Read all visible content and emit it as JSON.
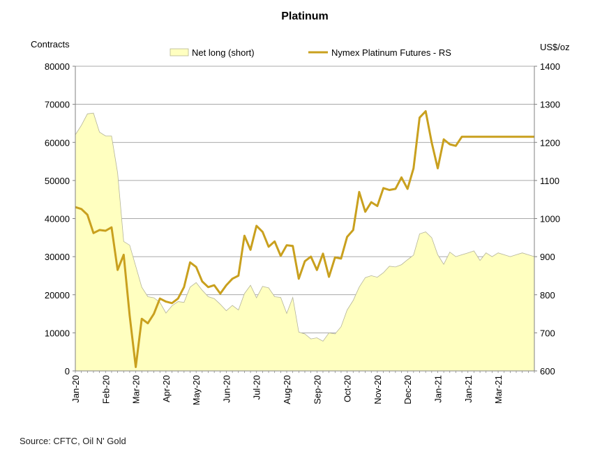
{
  "chart_data": {
    "type": "area",
    "title": "Platinum",
    "source": "Source: CFTC, Oil N' Gold",
    "y_left_label": "Contracts",
    "y_right_label": "US$/oz",
    "y_left_range": [
      0,
      80000
    ],
    "y_left_ticks": [
      0,
      10000,
      20000,
      30000,
      40000,
      50000,
      60000,
      70000,
      80000
    ],
    "y_right_range": [
      600,
      1400
    ],
    "y_right_ticks": [
      600,
      700,
      800,
      900,
      1000,
      1100,
      1200,
      1300,
      1400
    ],
    "grid": "horizontal",
    "legend_position": "top",
    "x_tick_labels": [
      "Jan-20",
      "Feb-20",
      "Mar-20",
      "Apr-20",
      "May-20",
      "Jun-20",
      "Jul-20",
      "Aug-20",
      "Sep-20",
      "Oct-20",
      "Nov-20",
      "Dec-20",
      "Jan-21",
      "Jan-21",
      "Mar-21"
    ],
    "x_tick_week_index": [
      0,
      5,
      10,
      15,
      20,
      25,
      30,
      35,
      40,
      45,
      50,
      55,
      60,
      65,
      70
    ],
    "weeks": 77,
    "series": [
      {
        "name": "Net long (short)",
        "kind": "area",
        "axis": "left",
        "color": "#ffffc0",
        "values": [
          62000,
          64500,
          67500,
          67700,
          62700,
          61700,
          61700,
          52000,
          34000,
          33000,
          27500,
          22000,
          19500,
          19200,
          18000,
          15200,
          17100,
          18200,
          18000,
          22000,
          23200,
          21200,
          19500,
          19000,
          17500,
          15800,
          17200,
          16000,
          20300,
          22500,
          19200,
          22200,
          21800,
          19500,
          19300,
          15100,
          19300,
          10200,
          9700,
          8400,
          8700,
          7800,
          10000,
          9700,
          11600,
          16000,
          18500,
          22000,
          24500,
          25000,
          24600,
          25800,
          27500,
          27300,
          27900,
          29200,
          30400,
          36000,
          36500,
          35000,
          30500,
          28000,
          31200,
          30000,
          30500,
          31000,
          31500,
          29000,
          31000,
          30000,
          31000,
          30500,
          30000,
          30500,
          31000,
          30500,
          30000
        ]
      },
      {
        "name": "Nymex Platinum Futures - RS",
        "kind": "line",
        "axis": "right",
        "color": "#c9a01e",
        "values": [
          1030,
          1025,
          1010,
          962,
          970,
          968,
          977,
          865,
          905,
          745,
          610,
          737,
          725,
          750,
          790,
          782,
          778,
          790,
          820,
          885,
          873,
          835,
          820,
          825,
          803,
          825,
          842,
          850,
          955,
          918,
          981,
          965,
          926,
          940,
          902,
          930,
          928,
          842,
          888,
          900,
          865,
          908,
          847,
          898,
          895,
          952,
          970,
          1070,
          1018,
          1043,
          1033,
          1080,
          1075,
          1078,
          1108,
          1078,
          1132,
          1265,
          1282,
          1200,
          1132,
          1208,
          1195,
          1191,
          1215,
          1215,
          1215,
          1215,
          1215,
          1215,
          1215,
          1215,
          1215,
          1215,
          1215,
          1215,
          1215
        ]
      }
    ]
  }
}
